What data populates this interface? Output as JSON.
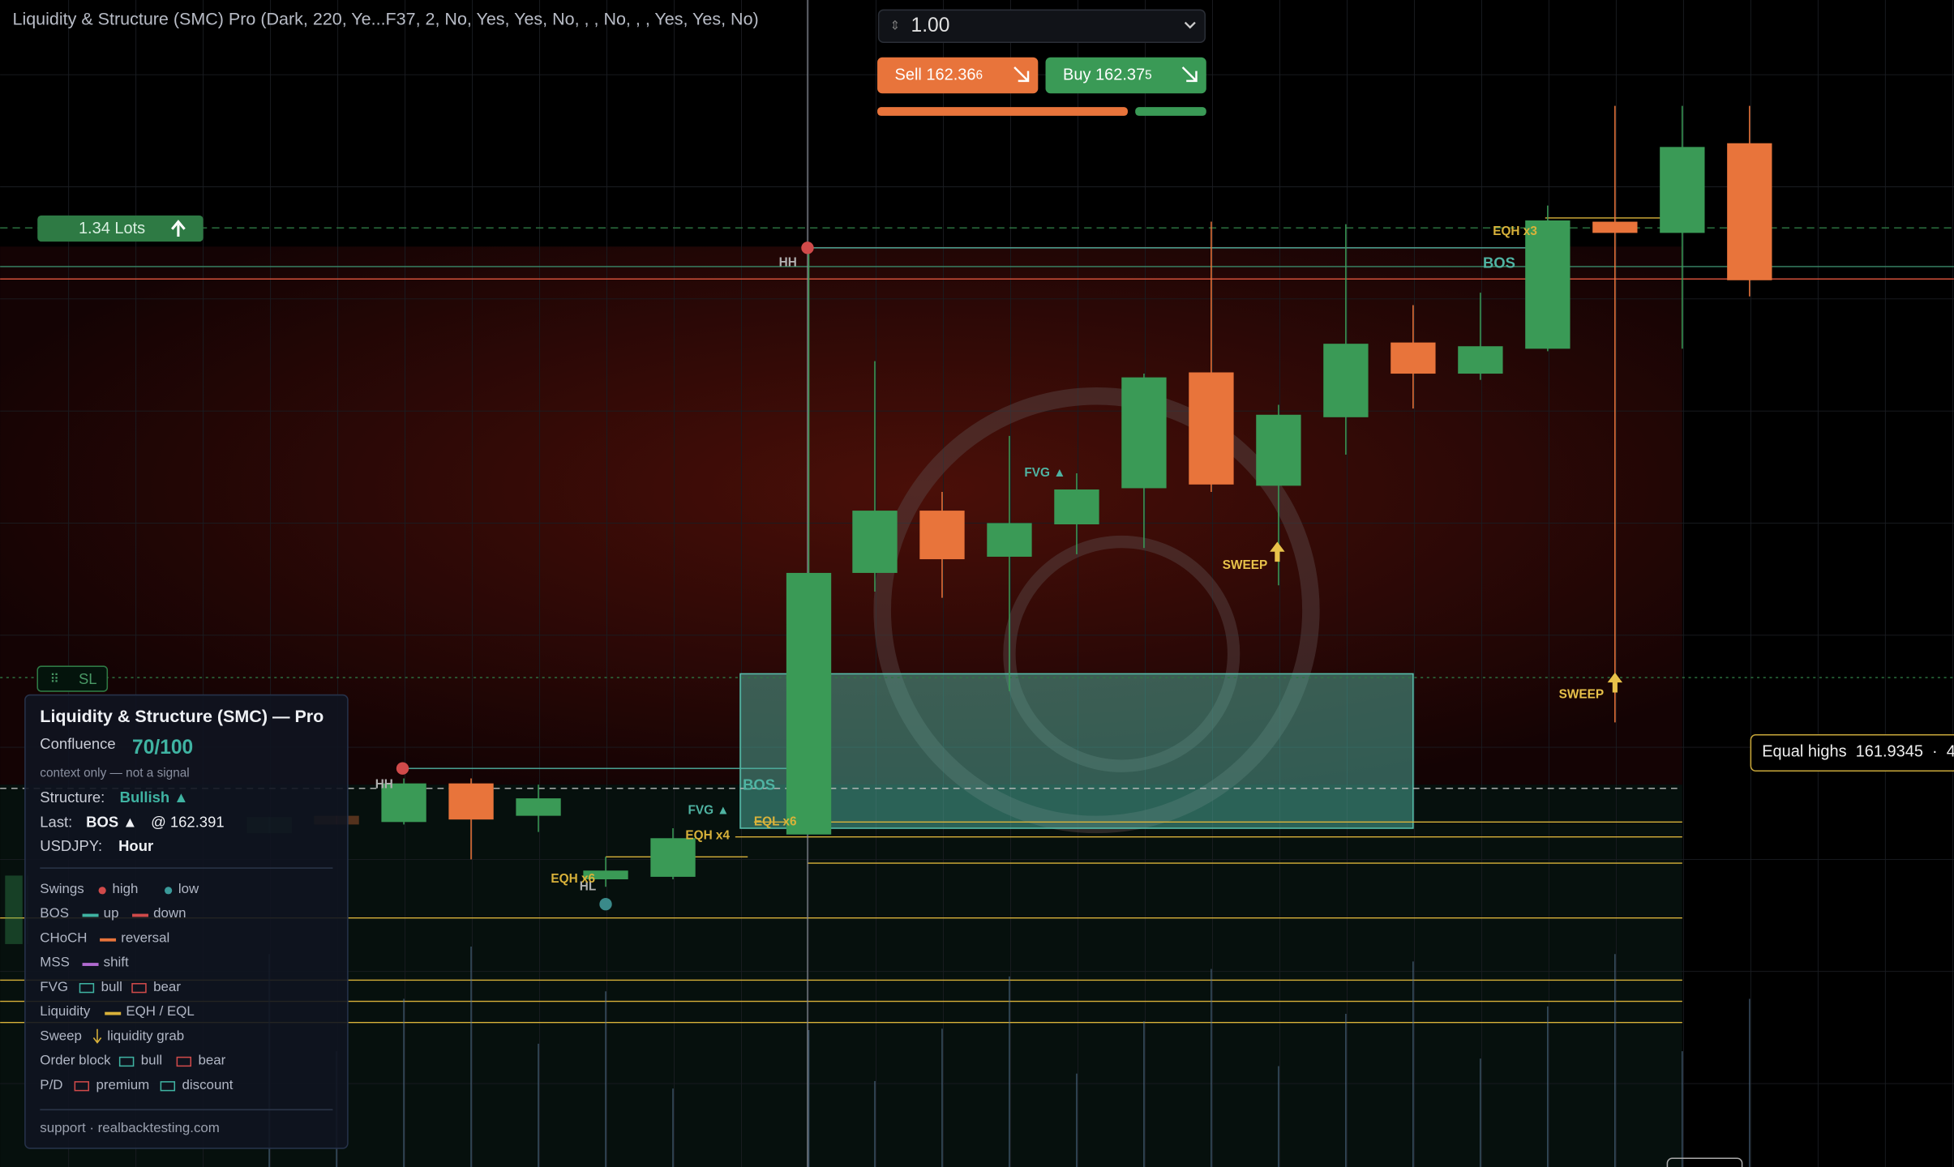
{
  "header": {
    "indicator": "Liquidity & Structure (SMC) Pro (Dark, 220, Ye...F37, 2, No, Yes, Yes, No, , , No, , , Yes, Yes, No)"
  },
  "order": {
    "volume": "1.00",
    "sell_label": "Sell",
    "sell_price": "162.36",
    "sell_pip": "6",
    "buy_label": "Buy",
    "buy_price": "162.37",
    "buy_pip": "5"
  },
  "chart": {
    "lots": "1.34 Lots",
    "sl": "SL",
    "labels": [
      "HH",
      "HH",
      "HL",
      "FVG ▲",
      "FVG ▲",
      "EQH x3",
      "BOS",
      "BOS",
      "EQH x6",
      "EQH x4",
      "EQL x6",
      "SWEEP",
      "SWEEP"
    ],
    "tooltip": "Equal highs  161.9345  ·  4"
  },
  "panel": {
    "title": "Liquidity & Structure (SMC) — Pro",
    "confluence_label": "Confluence",
    "confluence": "70/100",
    "note": "context only — not a signal",
    "structure_label": "Structure:",
    "structure": "Bullish ▲",
    "last_label": "Last:",
    "last": "BOS ▲",
    "last_price": "@ 162.391",
    "symbol": "USDJPY:",
    "timeframe": "Hour",
    "legend": [
      {
        "label": "Swings",
        "a": "high",
        "b": "low"
      },
      {
        "label": "BOS",
        "a": "up",
        "b": "down"
      },
      {
        "label": "CHoCH",
        "a": "reversal"
      },
      {
        "label": "MSS",
        "a": "shift"
      },
      {
        "label": "FVG",
        "a": "bull",
        "b": "bear"
      },
      {
        "label": "Liquidity",
        "a": "EQH / EQL"
      },
      {
        "label": "Sweep",
        "a": "liquidity grab"
      },
      {
        "label": "Order block",
        "a": "bull",
        "b": "bear"
      },
      {
        "label": "P/D",
        "a": "premium",
        "b": "discount"
      }
    ],
    "footer": "support · realbacktesting.com"
  }
}
